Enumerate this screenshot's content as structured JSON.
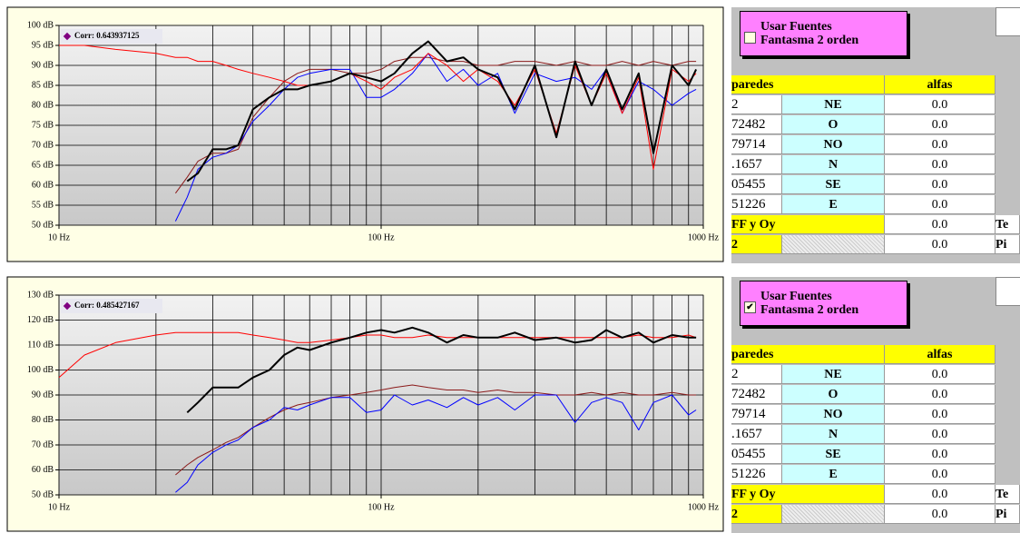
{
  "chart_data": [
    {
      "type": "line",
      "annotation": "Corr: 0.643937125",
      "annotation_color": "#800080",
      "xscale": "log",
      "xlim": [
        10,
        1000
      ],
      "xticks": [
        {
          "value": 10,
          "label": "10 Hz"
        },
        {
          "value": 100,
          "label": "100 Hz"
        },
        {
          "value": 1000,
          "label": "1000 Hz"
        }
      ],
      "x_minor_ticks": [
        20,
        30,
        40,
        50,
        60,
        70,
        80,
        90,
        200,
        300,
        400,
        500,
        600,
        700,
        800,
        900
      ],
      "ylim": [
        50,
        100
      ],
      "yticks": [
        {
          "value": 50,
          "label": "50 dB"
        },
        {
          "value": 55,
          "label": "55 dB"
        },
        {
          "value": 60,
          "label": "60 dB"
        },
        {
          "value": 65,
          "label": "65 dB"
        },
        {
          "value": 70,
          "label": "70 dB"
        },
        {
          "value": 75,
          "label": "75 dB"
        },
        {
          "value": 80,
          "label": "80 dB"
        },
        {
          "value": 85,
          "label": "85 dB"
        },
        {
          "value": 90,
          "label": "90 dB"
        },
        {
          "value": 95,
          "label": "95 dB"
        },
        {
          "value": 100,
          "label": "100 dB"
        }
      ],
      "grid": true,
      "x": [
        10,
        12,
        15,
        20,
        23,
        25,
        27,
        30,
        33,
        36,
        40,
        45,
        50,
        55,
        60,
        70,
        80,
        90,
        100,
        110,
        125,
        140,
        160,
        180,
        200,
        230,
        260,
        300,
        350,
        400,
        450,
        500,
        560,
        630,
        700,
        800,
        900,
        950
      ],
      "series": [
        {
          "color": "#8b1a1a",
          "width": 1,
          "values": [
            null,
            null,
            null,
            null,
            58,
            62,
            66,
            68,
            68,
            69,
            77,
            82,
            86,
            88,
            89,
            89,
            88,
            88,
            89,
            91,
            92,
            92,
            91,
            91,
            90,
            90,
            91,
            91,
            90,
            91,
            90,
            90,
            91,
            90,
            91,
            90,
            91,
            91
          ]
        },
        {
          "color": "#0000ff",
          "width": 1,
          "values": [
            null,
            null,
            null,
            null,
            51,
            57,
            64,
            67,
            68,
            70,
            76,
            80,
            84,
            87,
            88,
            89,
            89,
            82,
            82,
            84,
            88,
            93,
            86,
            89,
            85,
            88,
            78,
            88,
            86,
            87,
            84,
            89,
            78,
            86,
            84,
            80,
            83,
            84
          ]
        },
        {
          "color": "#ff0000",
          "width": 1,
          "values": [
            95,
            95,
            94,
            93,
            92,
            92,
            91,
            91,
            90,
            89,
            88,
            87,
            86,
            85,
            85,
            86,
            88,
            86,
            84,
            87,
            89,
            93,
            90,
            86,
            89,
            86,
            80,
            89,
            73,
            90,
            80,
            88,
            78,
            87,
            64,
            89,
            86,
            88
          ]
        },
        {
          "color": "#000000",
          "width": 2,
          "values": [
            null,
            null,
            null,
            null,
            null,
            61,
            63,
            69,
            69,
            70,
            79,
            82,
            84,
            84,
            85,
            86,
            88,
            87,
            86,
            88,
            93,
            96,
            91,
            92,
            89,
            87,
            79,
            90,
            72,
            91,
            80,
            89,
            79,
            88,
            68,
            90,
            85,
            89
          ]
        }
      ]
    },
    {
      "type": "line",
      "annotation": "Corr: 0.485427167",
      "annotation_color": "#800080",
      "xscale": "log",
      "xlim": [
        10,
        1000
      ],
      "xticks": [
        {
          "value": 10,
          "label": "10 Hz"
        },
        {
          "value": 100,
          "label": "100 Hz"
        },
        {
          "value": 1000,
          "label": "1000 Hz"
        }
      ],
      "x_minor_ticks": [
        20,
        30,
        40,
        50,
        60,
        70,
        80,
        90,
        200,
        300,
        400,
        500,
        600,
        700,
        800,
        900
      ],
      "ylim": [
        50,
        130
      ],
      "yticks": [
        {
          "value": 50,
          "label": "50 dB"
        },
        {
          "value": 60,
          "label": "60 dB"
        },
        {
          "value": 70,
          "label": "70 dB"
        },
        {
          "value": 80,
          "label": "80 dB"
        },
        {
          "value": 90,
          "label": "90 dB"
        },
        {
          "value": 100,
          "label": "100 dB"
        },
        {
          "value": 110,
          "label": "110 dB"
        },
        {
          "value": 120,
          "label": "120 dB"
        },
        {
          "value": 130,
          "label": "130 dB"
        }
      ],
      "grid": true,
      "x": [
        10,
        12,
        15,
        20,
        23,
        25,
        27,
        30,
        33,
        36,
        40,
        45,
        50,
        55,
        60,
        70,
        80,
        90,
        100,
        110,
        125,
        140,
        160,
        180,
        200,
        230,
        260,
        300,
        350,
        400,
        450,
        500,
        560,
        630,
        700,
        800,
        900,
        950
      ],
      "series": [
        {
          "color": "#8b1a1a",
          "width": 1,
          "values": [
            null,
            null,
            null,
            null,
            58,
            62,
            65,
            68,
            71,
            73,
            77,
            81,
            84,
            86,
            87,
            89,
            90,
            91,
            92,
            93,
            94,
            93,
            92,
            92,
            91,
            92,
            91,
            91,
            90,
            90,
            91,
            90,
            91,
            90,
            90,
            91,
            90,
            90
          ]
        },
        {
          "color": "#0000ff",
          "width": 1,
          "values": [
            null,
            null,
            null,
            null,
            51,
            55,
            62,
            67,
            70,
            72,
            77,
            80,
            85,
            84,
            86,
            89,
            89,
            83,
            84,
            90,
            86,
            88,
            85,
            89,
            86,
            89,
            84,
            90,
            90,
            79,
            87,
            89,
            87,
            76,
            87,
            90,
            82,
            84
          ]
        },
        {
          "color": "#ff0000",
          "width": 1,
          "values": [
            97,
            106,
            111,
            114,
            115,
            115,
            115,
            115,
            115,
            115,
            114,
            113,
            112,
            111,
            111,
            112,
            113,
            114,
            114,
            113,
            113,
            114,
            113,
            113,
            113,
            113,
            113,
            113,
            113,
            113,
            113,
            113,
            113,
            114,
            113,
            113,
            114,
            113
          ]
        },
        {
          "color": "#000000",
          "width": 2,
          "values": [
            null,
            null,
            null,
            null,
            null,
            83,
            87,
            93,
            93,
            93,
            97,
            100,
            106,
            109,
            108,
            111,
            113,
            115,
            116,
            115,
            117,
            115,
            111,
            114,
            113,
            113,
            115,
            112,
            113,
            111,
            112,
            116,
            113,
            115,
            111,
            114,
            113,
            113
          ]
        }
      ]
    }
  ],
  "panels": [
    {
      "button": {
        "lines": [
          "Usar Fuentes",
          "Fantasma 2 orden"
        ],
        "checked": false
      },
      "table": {
        "header": [
          "paredes",
          "alfas"
        ],
        "rows": [
          [
            "2",
            "NE",
            "0.0"
          ],
          [
            "72482",
            "O",
            "0.0"
          ],
          [
            "79714",
            "NO",
            "0.0"
          ],
          [
            ".1657",
            "N",
            "0.0"
          ],
          [
            "05455",
            "SE",
            "0.0"
          ],
          [
            "51226",
            "E",
            "0.0"
          ]
        ],
        "footer": [
          [
            "FF y Oy",
            "0.0",
            "Te"
          ],
          [
            "2",
            "0.0",
            "Pi"
          ]
        ]
      }
    },
    {
      "button": {
        "lines": [
          "Usar Fuentes",
          "Fantasma 2 orden"
        ],
        "checked": true
      },
      "table": {
        "header": [
          "paredes",
          "alfas"
        ],
        "rows": [
          [
            "2",
            "NE",
            "0.0"
          ],
          [
            "72482",
            "O",
            "0.0"
          ],
          [
            "79714",
            "NO",
            "0.0"
          ],
          [
            ".1657",
            "N",
            "0.0"
          ],
          [
            "05455",
            "SE",
            "0.0"
          ],
          [
            "51226",
            "E",
            "0.0"
          ]
        ],
        "footer": [
          [
            "FF y Oy",
            "0.0",
            "Te"
          ],
          [
            "2",
            "0.0",
            "Pi"
          ]
        ]
      }
    }
  ]
}
